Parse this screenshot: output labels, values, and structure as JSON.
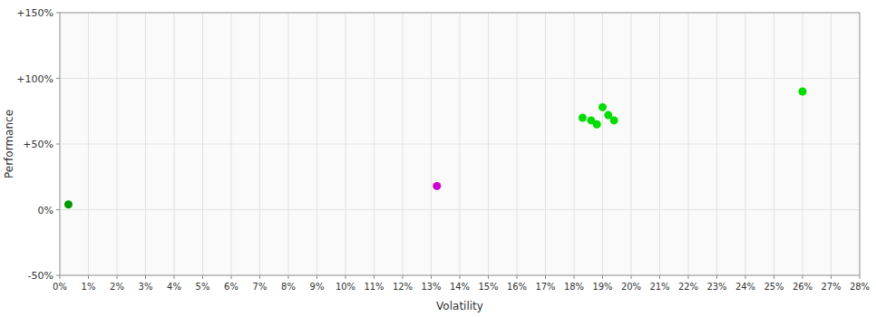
{
  "chart_data": {
    "type": "scatter",
    "xlabel": "Volatility",
    "ylabel": "Performance",
    "xlim": [
      0,
      0.28
    ],
    "ylim": [
      -0.5,
      1.5
    ],
    "xticks": [
      {
        "value": 0.0,
        "label": "0%"
      },
      {
        "value": 0.01,
        "label": "1%"
      },
      {
        "value": 0.02,
        "label": "2%"
      },
      {
        "value": 0.03,
        "label": "3%"
      },
      {
        "value": 0.04,
        "label": "4%"
      },
      {
        "value": 0.05,
        "label": "5%"
      },
      {
        "value": 0.06,
        "label": "6%"
      },
      {
        "value": 0.07,
        "label": "7%"
      },
      {
        "value": 0.08,
        "label": "8%"
      },
      {
        "value": 0.09,
        "label": "9%"
      },
      {
        "value": 0.1,
        "label": "10%"
      },
      {
        "value": 0.11,
        "label": "11%"
      },
      {
        "value": 0.12,
        "label": "12%"
      },
      {
        "value": 0.13,
        "label": "13%"
      },
      {
        "value": 0.14,
        "label": "14%"
      },
      {
        "value": 0.15,
        "label": "15%"
      },
      {
        "value": 0.16,
        "label": "16%"
      },
      {
        "value": 0.17,
        "label": "17%"
      },
      {
        "value": 0.18,
        "label": "18%"
      },
      {
        "value": 0.19,
        "label": "19%"
      },
      {
        "value": 0.2,
        "label": "20%"
      },
      {
        "value": 0.21,
        "label": "21%"
      },
      {
        "value": 0.22,
        "label": "22%"
      },
      {
        "value": 0.23,
        "label": "23%"
      },
      {
        "value": 0.24,
        "label": "24%"
      },
      {
        "value": 0.25,
        "label": "25%"
      },
      {
        "value": 0.26,
        "label": "26%"
      },
      {
        "value": 0.27,
        "label": "27%"
      },
      {
        "value": 0.28,
        "label": "28%"
      }
    ],
    "yticks": [
      {
        "value": -0.5,
        "label": "-50%"
      },
      {
        "value": 0.0,
        "label": "0%"
      },
      {
        "value": 0.5,
        "label": "+50%"
      },
      {
        "value": 1.0,
        "label": "+100%"
      },
      {
        "value": 1.5,
        "label": "+150%"
      }
    ],
    "grid": true,
    "series": [
      {
        "color": "#00dd00",
        "marker": "circle",
        "x": [
          0.183,
          0.186,
          0.188,
          0.19,
          0.192,
          0.194,
          0.26
        ],
        "values": [
          0.7,
          0.68,
          0.65,
          0.78,
          0.72,
          0.68,
          0.9
        ]
      },
      {
        "color": "#cc00cc",
        "marker": "circle",
        "x": [
          0.132
        ],
        "values": [
          0.18
        ]
      },
      {
        "color": "#009900",
        "marker": "circle",
        "x": [
          0.003
        ],
        "values": [
          0.04
        ]
      }
    ]
  }
}
